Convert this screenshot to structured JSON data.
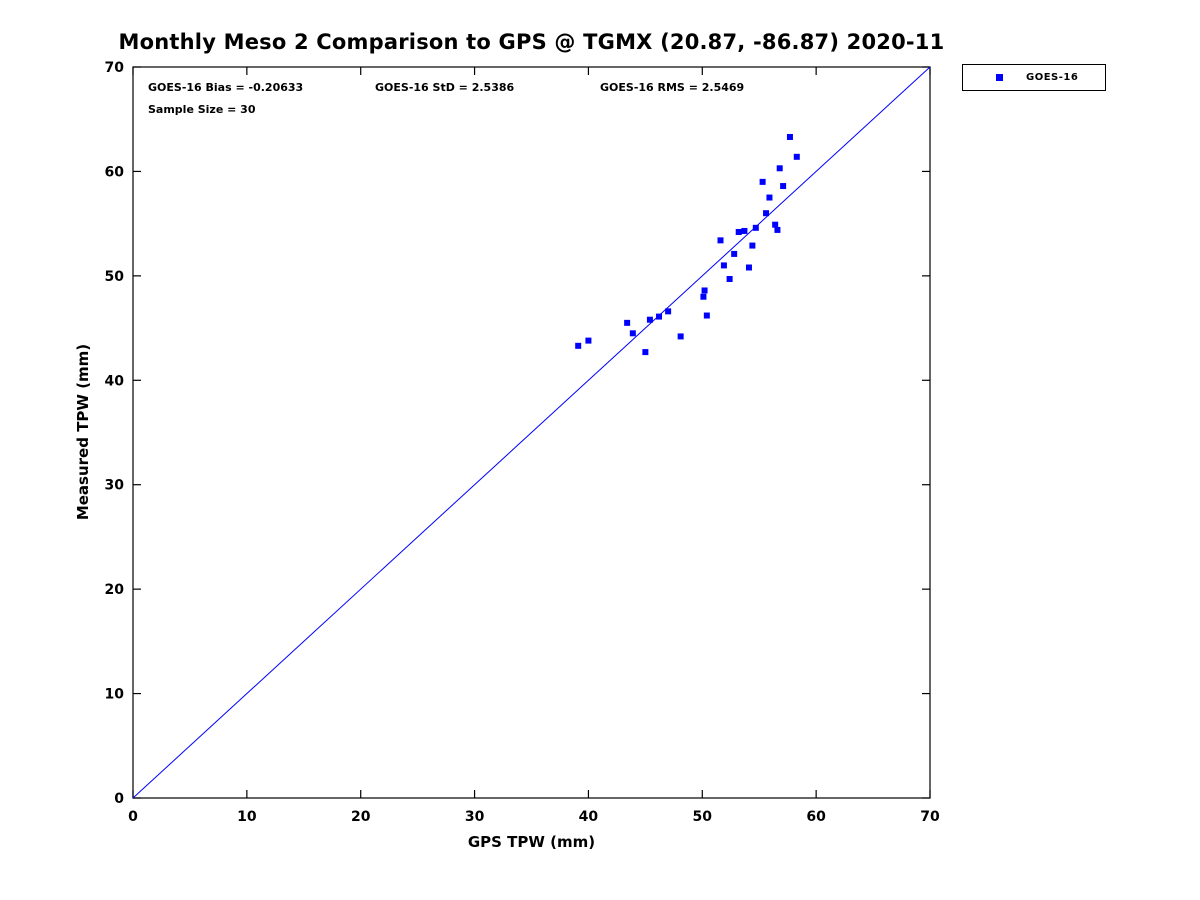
{
  "title": "Monthly Meso 2 Comparison to GPS @ TGMX (20.87, -86.87) 2020-11",
  "annotations": {
    "bias": "GOES-16 Bias = -0.20633",
    "std": "GOES-16 StD = 2.5386",
    "rms": "GOES-16 RMS = 2.5469",
    "sample": "Sample Size = 30"
  },
  "legend": {
    "label": "GOES-16",
    "marker_color": "#0000ff"
  },
  "chart_data": {
    "type": "scatter",
    "title": "Monthly Meso 2 Comparison to GPS @ TGMX (20.87, -86.87) 2020-11",
    "xlabel": "GPS TPW (mm)",
    "ylabel": "Measured TPW (mm)",
    "xlim": [
      0,
      70
    ],
    "ylim": [
      0,
      70
    ],
    "xticks": [
      0,
      10,
      20,
      30,
      40,
      50,
      60,
      70
    ],
    "yticks": [
      0,
      10,
      20,
      30,
      40,
      50,
      60,
      70
    ],
    "grid": false,
    "legend_position": "outside-top-right",
    "reference_line": {
      "from": [
        0,
        0
      ],
      "to": [
        70,
        70
      ],
      "color": "#0000ff",
      "width": 1
    },
    "series": [
      {
        "name": "GOES-16",
        "color": "#0000ff",
        "marker": "square",
        "marker_size": 6,
        "points": [
          [
            39.1,
            43.3
          ],
          [
            40.0,
            43.8
          ],
          [
            43.4,
            45.5
          ],
          [
            43.9,
            44.5
          ],
          [
            45.0,
            42.7
          ],
          [
            45.4,
            45.8
          ],
          [
            46.2,
            46.1
          ],
          [
            47.0,
            46.6
          ],
          [
            48.1,
            44.2
          ],
          [
            50.1,
            48.0
          ],
          [
            50.2,
            48.6
          ],
          [
            50.4,
            46.2
          ],
          [
            51.6,
            53.4
          ],
          [
            51.9,
            51.0
          ],
          [
            52.4,
            49.7
          ],
          [
            52.8,
            52.1
          ],
          [
            53.2,
            54.2
          ],
          [
            53.7,
            54.3
          ],
          [
            54.1,
            50.8
          ],
          [
            54.4,
            52.9
          ],
          [
            54.7,
            54.6
          ],
          [
            55.3,
            59.0
          ],
          [
            55.6,
            56.0
          ],
          [
            55.9,
            57.5
          ],
          [
            56.4,
            54.9
          ],
          [
            56.6,
            54.4
          ],
          [
            56.8,
            60.3
          ],
          [
            57.1,
            58.6
          ],
          [
            57.7,
            63.3
          ],
          [
            58.3,
            61.4
          ]
        ]
      }
    ]
  }
}
